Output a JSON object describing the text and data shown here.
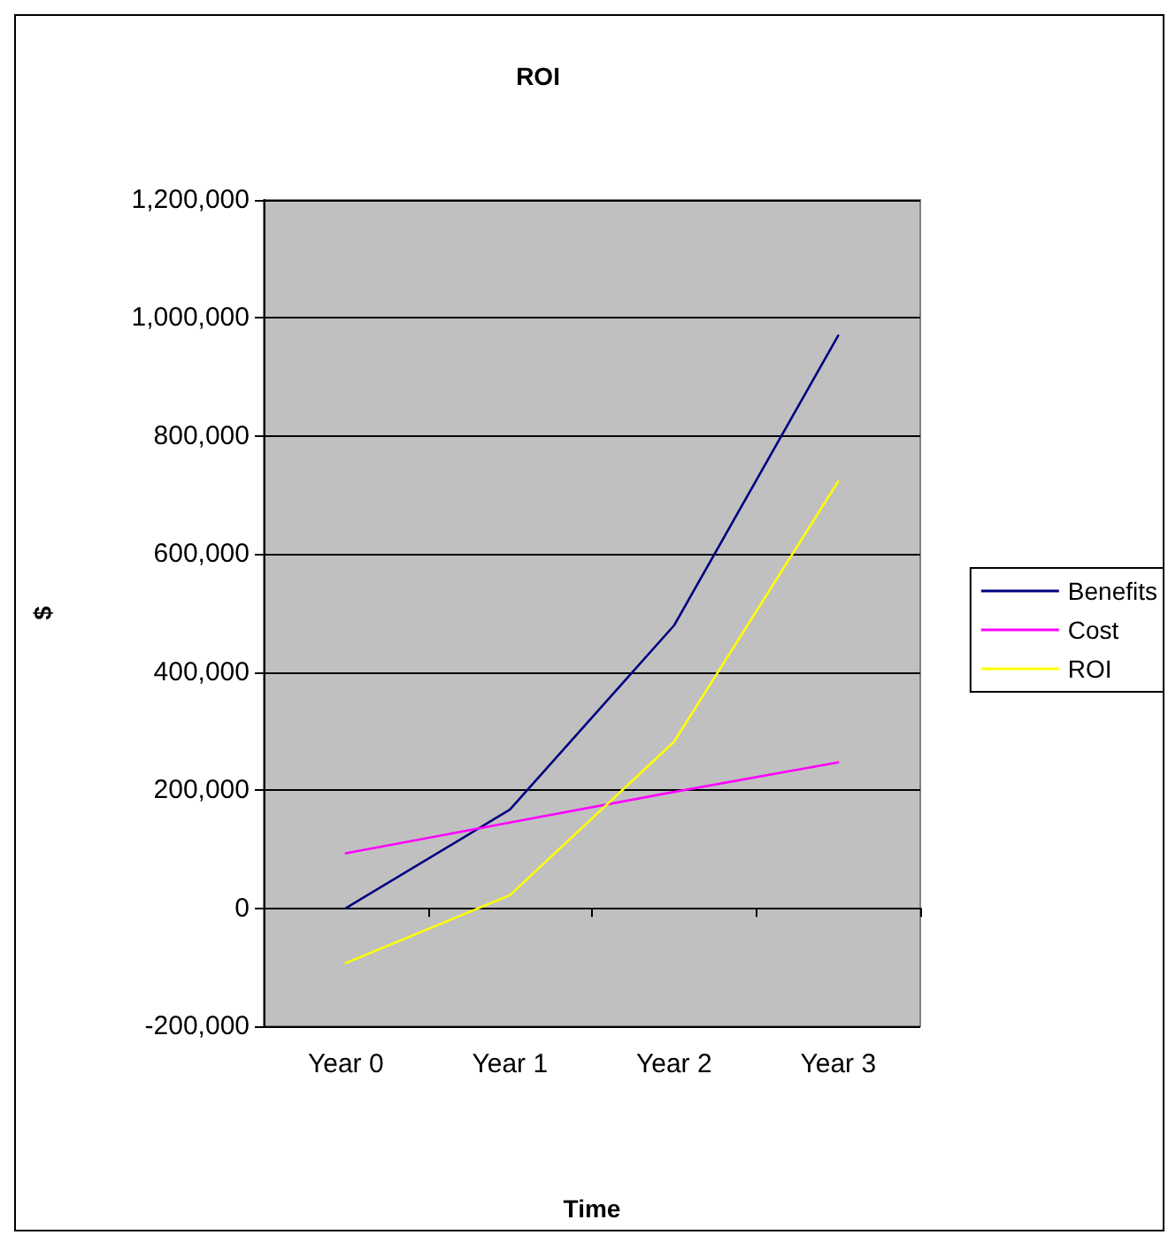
{
  "chart_data": {
    "type": "line",
    "title": "ROI",
    "xlabel": "Time",
    "ylabel": "$",
    "categories": [
      "Year 0",
      "Year 1",
      "Year 2",
      "Year 3"
    ],
    "series": [
      {
        "name": "Benefits",
        "color": "#000080",
        "values": [
          0,
          167000,
          479000,
          970000
        ]
      },
      {
        "name": "Cost",
        "color": "#ff00ff",
        "values": [
          93000,
          145000,
          197000,
          247000
        ]
      },
      {
        "name": "ROI",
        "color": "#ffff00",
        "values": [
          -93000,
          22000,
          282000,
          723000
        ]
      }
    ],
    "ylim": [
      -200000,
      1200000
    ],
    "yticks": [
      {
        "value": -200000,
        "label": "-200,000"
      },
      0,
      {
        "value": 200000,
        "label": "200,000"
      },
      {
        "value": 400000,
        "label": "400,000"
      },
      {
        "value": 600000,
        "label": "600,000"
      },
      {
        "value": 800000,
        "label": "800,000"
      },
      {
        "value": 1000000,
        "label": "1,000,000"
      },
      {
        "value": 1200000,
        "label": "1,200,000"
      }
    ],
    "grid": "y",
    "legend": "right",
    "marker": "none",
    "line_style": "solid"
  }
}
